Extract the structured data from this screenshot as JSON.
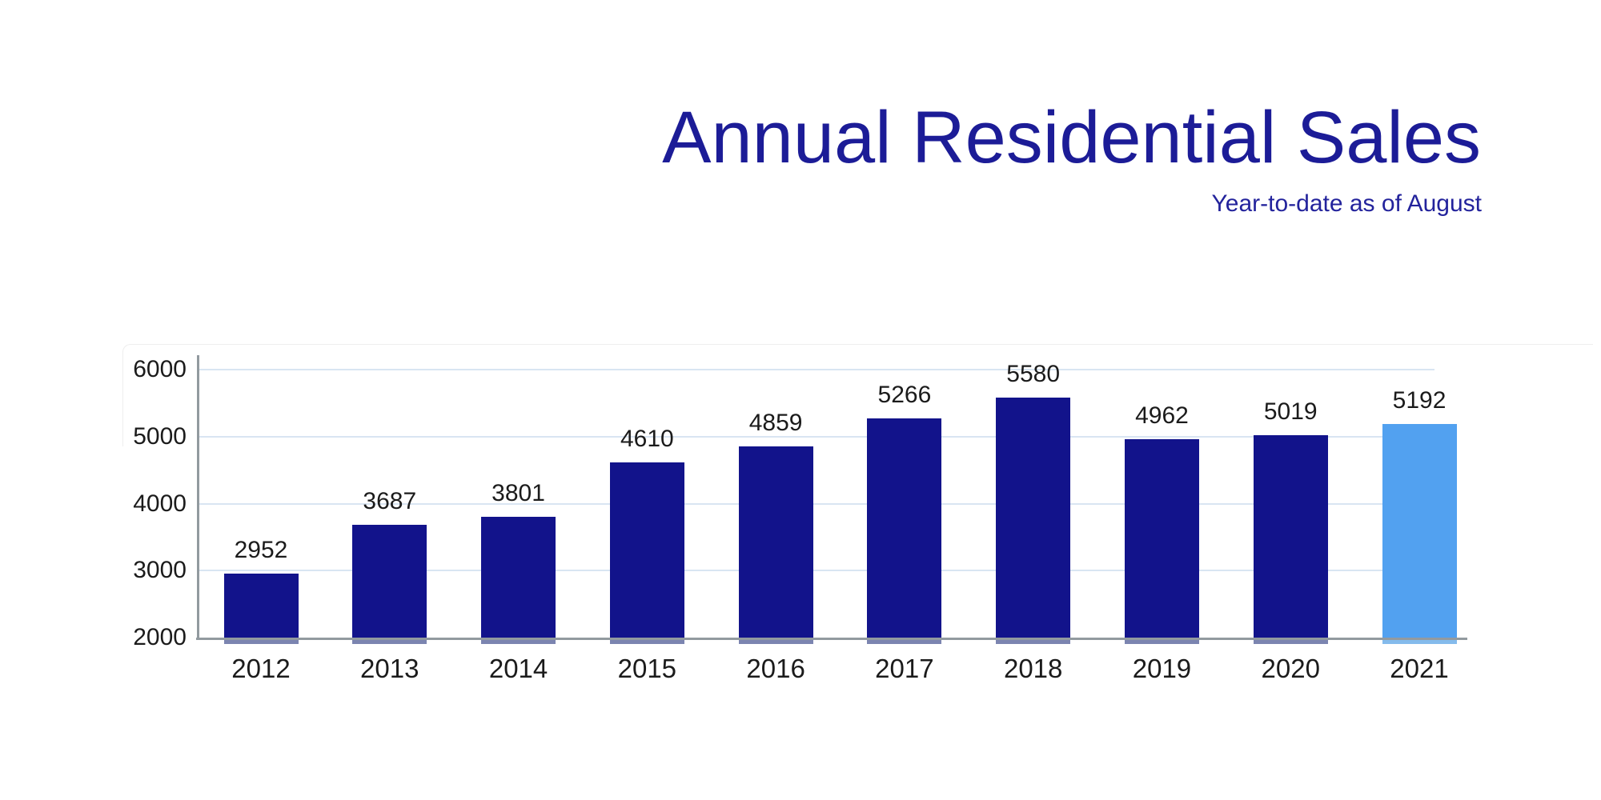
{
  "header": {
    "title": "Annual Residential Sales",
    "subtitle": "Year-to-date as of August"
  },
  "colors": {
    "title": "#1c1c97",
    "subtitle": "#23239c",
    "bar": "#12138b",
    "bar_highlight": "#52a1f0",
    "bar_shadow": "#7b84b0",
    "bar_highlight_shadow": "#84bbec",
    "axis_line": "#929a9f",
    "gridline": "#d9e5f2",
    "tick_text": "#1b1b1b"
  },
  "chart_data": {
    "type": "bar",
    "title": "Annual Residential Sales",
    "subtitle": "Year-to-date as of August",
    "categories": [
      "2012",
      "2013",
      "2014",
      "2015",
      "2016",
      "2017",
      "2018",
      "2019",
      "2020",
      "2021"
    ],
    "values": [
      2952,
      3687,
      3801,
      4610,
      4859,
      5266,
      5580,
      4962,
      5019,
      5192
    ],
    "data_labels_shown": true,
    "highlight_index": 9,
    "xlabel": "",
    "ylabel": "",
    "ylim": [
      2000,
      6000
    ],
    "yticks": [
      2000,
      3000,
      4000,
      5000,
      6000
    ],
    "grid": "horizontal",
    "legend": "none"
  }
}
